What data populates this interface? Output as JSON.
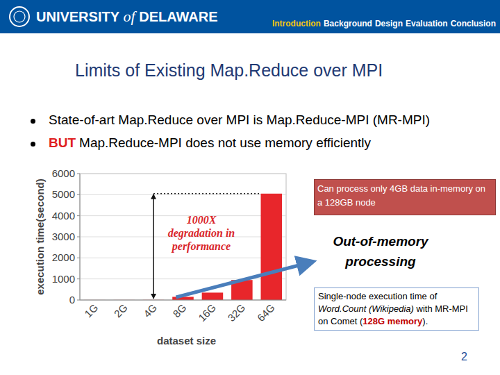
{
  "header": {
    "logo": [
      "UNIVERSITY",
      "of",
      "DELAWARE"
    ],
    "nav": [
      "Introduction",
      "Background",
      "Design",
      "Evaluation",
      "Conclusion"
    ]
  },
  "title": "Limits of Existing Map.Reduce over MPI",
  "bullets": [
    {
      "text": "State-of-art Map.Reduce over MPI is Map.Reduce-MPI (MR-MPI)"
    },
    {
      "emph": "BUT",
      "text": "Map.Reduce-MPI does not use memory efficiently"
    }
  ],
  "chart_data": {
    "type": "bar",
    "categories": [
      "1G",
      "2G",
      "4G",
      "8G",
      "16G",
      "32G",
      "64G"
    ],
    "values": [
      2,
      3,
      5,
      150,
      350,
      950,
      5050
    ],
    "color": "#e8262b",
    "ylim": [
      0,
      6000
    ],
    "yticks": [
      0,
      1000,
      2000,
      3000,
      4000,
      5000,
      6000
    ],
    "grid": true,
    "x_label": "dataset size",
    "y_label": "execution time(second)",
    "annotation": [
      "1000X",
      "degradation in",
      "performance"
    ]
  },
  "callout": "Can process only 4GB data in-memory on a 128GB node",
  "note": [
    "Out-of-memory",
    "processing"
  ],
  "caption": [
    "Single-node execution time of ",
    "Word.Count (Wikipedia)",
    " with MR-MPI on Comet (",
    "128G memory",
    ")."
  ],
  "page_number": 2
}
